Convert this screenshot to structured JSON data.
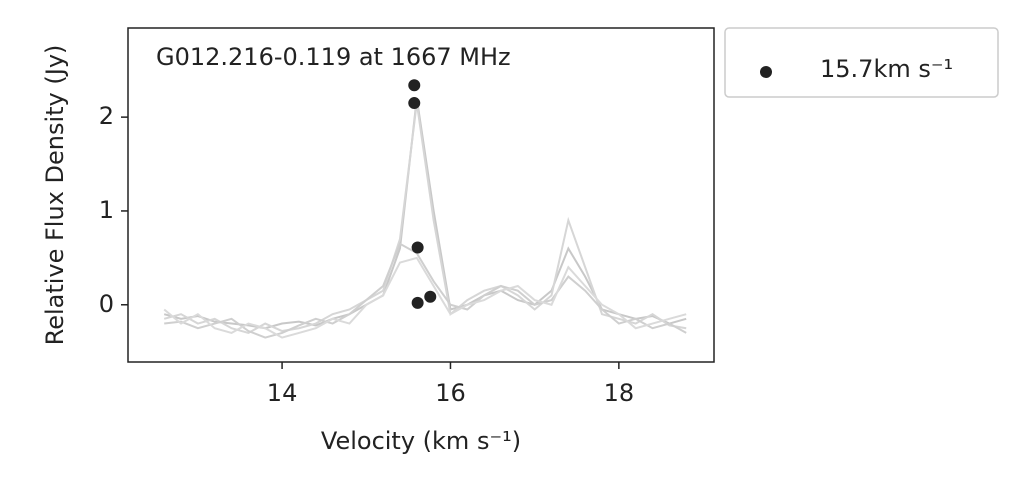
{
  "chart_data": {
    "type": "scatter",
    "title": "G012.216-0.119 at 1667 MHz",
    "xlabel": "Velocity (km s⁻¹)",
    "ylabel": "Relative Flux Density (Jy)",
    "xlim": [
      12.17,
      19.13
    ],
    "ylim": [
      -0.61,
      2.95
    ],
    "xticks": [
      14,
      16,
      18
    ],
    "yticks": [
      0,
      1,
      2
    ],
    "legend": "outside upper right",
    "line_x": [
      12.6,
      12.8,
      13.0,
      13.2,
      13.4,
      13.6,
      13.8,
      14.0,
      14.2,
      14.4,
      14.6,
      14.8,
      15.0,
      15.2,
      15.4,
      15.6,
      15.8,
      16.0,
      16.2,
      16.4,
      16.6,
      16.8,
      17.0,
      17.2,
      17.4,
      17.6,
      17.8,
      18.0,
      18.2,
      18.4,
      18.6,
      18.8
    ],
    "lines": [
      {
        "color": "#c8c8c8",
        "values": [
          -0.1,
          -0.15,
          -0.12,
          -0.18,
          -0.2,
          -0.22,
          -0.25,
          -0.2,
          -0.18,
          -0.22,
          -0.15,
          -0.1,
          0.0,
          0.1,
          0.6,
          2.2,
          1.0,
          -0.05,
          0.0,
          0.1,
          0.15,
          0.05,
          0.0,
          0.15,
          0.6,
          0.3,
          -0.05,
          -0.1,
          -0.15,
          -0.12,
          -0.2,
          -0.15
        ]
      },
      {
        "color": "#d6d6d6",
        "values": [
          -0.15,
          -0.1,
          -0.2,
          -0.15,
          -0.25,
          -0.3,
          -0.2,
          -0.28,
          -0.25,
          -0.2,
          -0.1,
          -0.05,
          0.05,
          0.15,
          0.7,
          2.15,
          0.9,
          -0.1,
          0.05,
          0.15,
          0.2,
          0.1,
          -0.05,
          0.1,
          0.9,
          0.4,
          -0.1,
          -0.15,
          -0.2,
          -0.1,
          -0.22,
          -0.25
        ]
      },
      {
        "color": "#cfcfcf",
        "values": [
          -0.2,
          -0.18,
          -0.25,
          -0.2,
          -0.15,
          -0.28,
          -0.35,
          -0.3,
          -0.22,
          -0.15,
          -0.2,
          -0.1,
          0.05,
          0.2,
          0.65,
          0.55,
          0.25,
          0.0,
          -0.05,
          0.1,
          0.2,
          0.15,
          0.0,
          0.05,
          0.3,
          0.15,
          -0.05,
          -0.2,
          -0.15,
          -0.25,
          -0.2,
          -0.3
        ]
      },
      {
        "color": "#dadada",
        "values": [
          -0.05,
          -0.2,
          -0.1,
          -0.25,
          -0.3,
          -0.2,
          -0.25,
          -0.35,
          -0.3,
          -0.25,
          -0.15,
          -0.2,
          0.0,
          0.1,
          0.45,
          0.5,
          0.2,
          -0.1,
          0.0,
          0.05,
          0.15,
          0.2,
          0.05,
          0.0,
          0.4,
          0.2,
          0.0,
          -0.1,
          -0.25,
          -0.2,
          -0.15,
          -0.1
        ]
      }
    ],
    "series": [
      {
        "name": "15.7km s⁻¹",
        "color": "#222222",
        "x": [
          15.57,
          15.57,
          15.61,
          15.61,
          15.76
        ],
        "values": [
          2.34,
          2.15,
          0.61,
          0.02,
          0.085
        ]
      }
    ]
  }
}
